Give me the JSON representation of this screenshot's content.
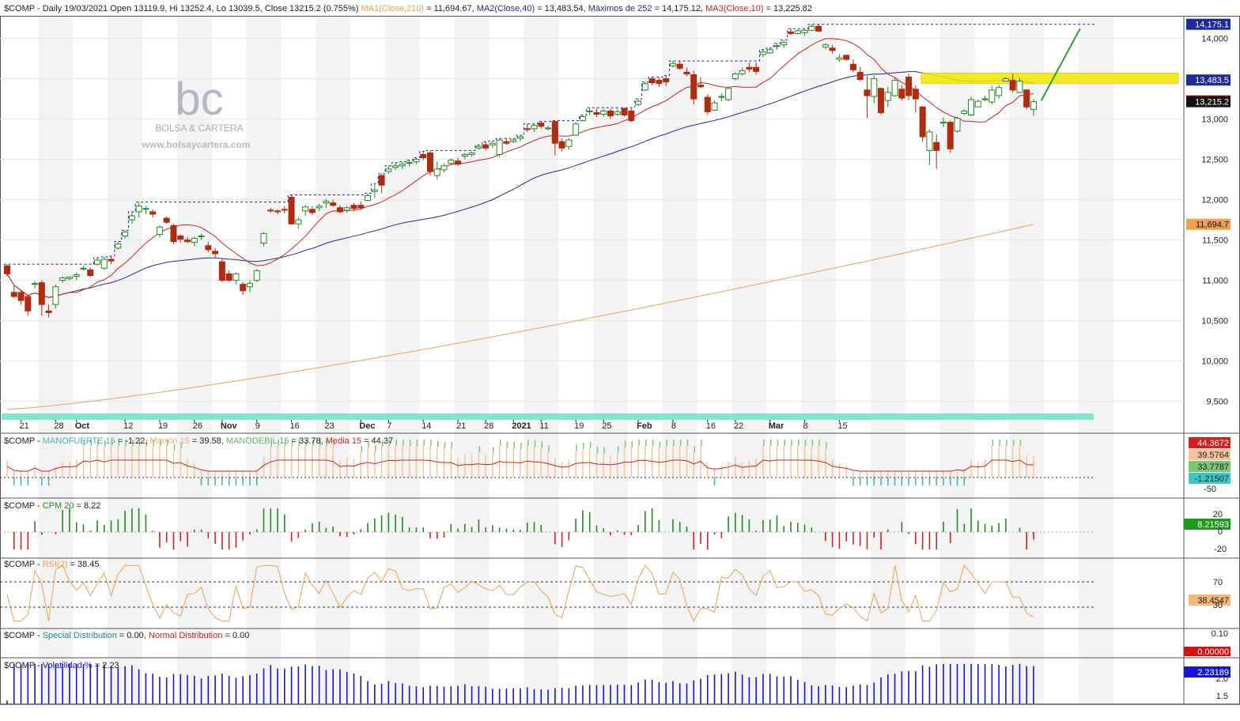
{
  "symbol": "$COMP",
  "header": {
    "prefix": "$COMP - Daily 19/03/2021 Open 13119.9, Hi 13252.4, Lo 13039.5, Close 13215.2 (0.755%)",
    "ma1_label": "MA1(Close,210)",
    "ma1_value": " = 11,694.67,",
    "ma2_label": "MA2(Close,40)",
    "ma2_value": " = 13,483.54,",
    "max_label": "Máximos de 252",
    "max_value": " = 14,175.12,",
    "ma3_label": "MA3(Close,10)",
    "ma3_value": " = 13,225.82"
  },
  "watermark": {
    "logo": "bc",
    "name": "BOLSA & CARTERA",
    "url": "www.bolsaycartera.com"
  },
  "colors": {
    "up": "#1e8c1e",
    "down": "#b22b0e",
    "ma210": "#f0a050",
    "ma40": "#1c2a9e",
    "ma10": "#d62020",
    "max252": "#1c2a9e",
    "yellow_zone": "#f5e600",
    "trend_arrow": "#2aa030",
    "time_bar": "#7fe6d0",
    "rsi": "#f0a050",
    "vol": "#1515d8",
    "cpm_up": "#1e8c1e",
    "cpm_down": "#d62020"
  },
  "x_axis": {
    "labels": [
      {
        "i": 2,
        "text": "21"
      },
      {
        "i": 7,
        "text": "28"
      },
      {
        "i": 10,
        "text": "Oct",
        "bold": true
      },
      {
        "i": 17,
        "text": "12"
      },
      {
        "i": 22,
        "text": "19"
      },
      {
        "i": 27,
        "text": "26"
      },
      {
        "i": 31,
        "text": "Nov",
        "bold": true
      },
      {
        "i": 36,
        "text": "9"
      },
      {
        "i": 41,
        "text": "16"
      },
      {
        "i": 46,
        "text": "23"
      },
      {
        "i": 51,
        "text": "Dec",
        "bold": true
      },
      {
        "i": 55,
        "text": "7"
      },
      {
        "i": 60,
        "text": "14"
      },
      {
        "i": 65,
        "text": "21"
      },
      {
        "i": 69,
        "text": "28"
      },
      {
        "i": 73,
        "text": "2021",
        "bold": true
      },
      {
        "i": 77,
        "text": "11"
      },
      {
        "i": 82,
        "text": "19"
      },
      {
        "i": 86,
        "text": "25"
      },
      {
        "i": 91,
        "text": "Feb",
        "bold": true
      },
      {
        "i": 96,
        "text": "8"
      },
      {
        "i": 101,
        "text": "16"
      },
      {
        "i": 105,
        "text": "22"
      },
      {
        "i": 110,
        "text": "Mar",
        "bold": true
      },
      {
        "i": 115,
        "text": "8"
      },
      {
        "i": 120,
        "text": "15"
      }
    ]
  },
  "price_axis": {
    "ticks": [
      "14,000",
      "13,500",
      "13,000",
      "12,500",
      "12,000",
      "11,500",
      "11,000",
      "10,500",
      "10,000",
      "9,500"
    ],
    "tick_values": [
      14000,
      13500,
      13000,
      12500,
      12000,
      11500,
      11000,
      10500,
      10000,
      9500
    ],
    "range": [
      9300,
      14280
    ]
  },
  "price_tags": [
    {
      "text": "14,175.1",
      "value": 14175.1,
      "bg": "#1c2a9e",
      "fg": "#ffffff"
    },
    {
      "text": "13,483.5",
      "value": 13483.5,
      "bg": "#1c2a9e",
      "fg": "#ffffff"
    },
    {
      "text": "13,225.8",
      "value": 13225.8,
      "bg": "#d62020",
      "fg": "#ffffff"
    },
    {
      "text": "13,215.2",
      "value": 13215.2,
      "bg": "#111111",
      "fg": "#ffffff"
    },
    {
      "text": "11,694.7",
      "value": 11694.7,
      "bg": "#f0a050",
      "fg": "#111111"
    }
  ],
  "panel_mano": {
    "title_prefix": "$COMP - ",
    "l1": "MANOFUERTE 15",
    "v1": " = -1.22, ",
    "l2": "Marrón 15",
    "v2": " = 39.58, ",
    "l3": "MANODEBIL 15",
    "v3": " = 33.78, ",
    "l4": "Media 15",
    "v4": " = 44.37",
    "tag1": "44.3672",
    "tag2": "39.5764",
    "tag3": "33.7787",
    "tag4": "-1.21507",
    "tick": "-50"
  },
  "panel_cpm": {
    "title_prefix": "$COMP - ",
    "label": "CPM 20",
    "value": " = 8.22",
    "ticks": [
      "20",
      "0",
      "-20"
    ],
    "tag": "8.21593"
  },
  "panel_rsi": {
    "title_prefix": "$COMP - ",
    "label": "RSI(2)",
    "value": " = 38.45",
    "ticks": [
      "70",
      "30"
    ],
    "tag": "38.4547"
  },
  "panel_dist": {
    "title_prefix": "$COMP - ",
    "l1": "Special Distribution",
    "v1": " = 0.00, ",
    "l2": "Normal Distribution",
    "v2": " = 0.00",
    "ticks": [
      "0.10"
    ],
    "tag": "0.00000"
  },
  "panel_vol": {
    "title_prefix": "$COMP - ",
    "label": "Volatilidad %",
    "value": " = 2.23",
    "ticks": [
      "2.0",
      "1.5"
    ],
    "tag": "2.23189"
  },
  "chart_data": {
    "type": "candlestick",
    "title": "$COMP - Daily 19/03/2021",
    "last_close": 13215.2,
    "candles": [
      [
        11180,
        11200,
        11050,
        11080
      ],
      [
        10850,
        10930,
        10780,
        10800
      ],
      [
        10850,
        10880,
        10700,
        10750
      ],
      [
        10800,
        10820,
        10560,
        10620
      ],
      [
        10950,
        10990,
        10900,
        10960
      ],
      [
        10970,
        11000,
        10560,
        10700
      ],
      [
        10620,
        10700,
        10540,
        10600
      ],
      [
        10700,
        10950,
        10650,
        10920
      ],
      [
        11000,
        11050,
        10970,
        11030
      ],
      [
        11020,
        11050,
        11000,
        11040
      ],
      [
        11050,
        11100,
        11000,
        11070
      ],
      [
        11150,
        11180,
        11120,
        11150
      ],
      [
        11130,
        11160,
        11040,
        11060
      ],
      [
        11200,
        11280,
        11180,
        11250
      ],
      [
        11150,
        11290,
        11130,
        11260
      ],
      [
        11260,
        11300,
        11200,
        11240
      ],
      [
        11400,
        11480,
        11380,
        11450
      ],
      [
        11550,
        11620,
        11520,
        11600
      ],
      [
        11750,
        11850,
        11700,
        11800
      ],
      [
        11850,
        11970,
        11780,
        11920
      ],
      [
        11880,
        11920,
        11820,
        11890
      ],
      [
        11850,
        11880,
        11780,
        11820
      ],
      [
        11570,
        11680,
        11530,
        11660
      ],
      [
        11770,
        11790,
        11700,
        11720
      ],
      [
        11680,
        11700,
        11450,
        11480
      ],
      [
        11550,
        11570,
        11470,
        11510
      ],
      [
        11500,
        11540,
        11460,
        11480
      ],
      [
        11470,
        11540,
        11420,
        11520
      ],
      [
        11540,
        11580,
        11500,
        11550
      ],
      [
        11430,
        11480,
        11350,
        11380
      ],
      [
        11360,
        11400,
        11280,
        11330
      ],
      [
        11230,
        11270,
        10980,
        11000
      ],
      [
        11080,
        11120,
        10980,
        11000
      ],
      [
        11000,
        11100,
        10950,
        11080
      ],
      [
        10950,
        10980,
        10820,
        10870
      ],
      [
        10920,
        11000,
        10850,
        10960
      ],
      [
        11000,
        11140,
        10980,
        11120
      ],
      [
        11460,
        11600,
        11420,
        11580
      ],
      [
        11870,
        11900,
        11840,
        11860
      ],
      [
        11860,
        11880,
        11820,
        11850
      ],
      [
        11880,
        11920,
        11830,
        11870
      ],
      [
        12030,
        12060,
        11690,
        11700
      ],
      [
        11700,
        11780,
        11640,
        11750
      ],
      [
        11860,
        11940,
        11800,
        11910
      ],
      [
        11880,
        11920,
        11810,
        11840
      ],
      [
        11900,
        11950,
        11860,
        11920
      ],
      [
        11960,
        12010,
        11900,
        11980
      ],
      [
        11960,
        12000,
        11910,
        11930
      ],
      [
        11900,
        11930,
        11830,
        11850
      ],
      [
        11870,
        11920,
        11840,
        11900
      ],
      [
        11930,
        11960,
        11860,
        11890
      ],
      [
        11930,
        11980,
        11870,
        11900
      ],
      [
        11990,
        12080,
        11980,
        12050
      ],
      [
        12100,
        12200,
        12020,
        12120
      ],
      [
        12300,
        12320,
        12080,
        12180
      ],
      [
        12350,
        12420,
        12320,
        12380
      ],
      [
        12400,
        12460,
        12370,
        12420
      ],
      [
        12420,
        12470,
        12380,
        12440
      ],
      [
        12450,
        12490,
        12410,
        12460
      ],
      [
        12470,
        12520,
        12440,
        12500
      ],
      [
        12560,
        12600,
        12490,
        12520
      ],
      [
        12580,
        12610,
        12300,
        12350
      ],
      [
        12300,
        12470,
        12250,
        12380
      ],
      [
        12370,
        12450,
        12340,
        12420
      ],
      [
        12450,
        12510,
        12440,
        12490
      ],
      [
        12480,
        12520,
        12420,
        12440
      ],
      [
        12540,
        12580,
        12500,
        12560
      ],
      [
        12560,
        12600,
        12530,
        12580
      ],
      [
        12640,
        12680,
        12620,
        12660
      ],
      [
        12680,
        12720,
        12610,
        12640
      ],
      [
        12680,
        12730,
        12640,
        12700
      ],
      [
        12560,
        12760,
        12530,
        12740
      ],
      [
        12720,
        12760,
        12680,
        12700
      ],
      [
        12720,
        12760,
        12700,
        12740
      ],
      [
        12760,
        12800,
        12720,
        12780
      ],
      [
        12880,
        12940,
        12840,
        12870
      ],
      [
        12880,
        12940,
        12840,
        12920
      ],
      [
        12950,
        12970,
        12880,
        12910
      ],
      [
        12880,
        12920,
        12860,
        12890
      ],
      [
        12970,
        12980,
        12550,
        12700
      ],
      [
        12720,
        12760,
        12600,
        12640
      ],
      [
        12660,
        12760,
        12620,
        12740
      ],
      [
        12800,
        12960,
        12790,
        12940
      ],
      [
        12980,
        13050,
        12970,
        13030
      ],
      [
        13100,
        13140,
        13050,
        13100
      ],
      [
        13080,
        13130,
        13020,
        13060
      ],
      [
        13060,
        13120,
        13030,
        13100
      ],
      [
        13100,
        13130,
        13000,
        13040
      ],
      [
        13060,
        13120,
        13040,
        13090
      ],
      [
        13130,
        13140,
        13030,
        13050
      ],
      [
        13100,
        13130,
        12960,
        12980
      ],
      [
        13180,
        13250,
        13160,
        13220
      ],
      [
        13360,
        13460,
        13350,
        13440
      ],
      [
        13500,
        13520,
        13420,
        13450
      ],
      [
        13480,
        13520,
        13400,
        13440
      ],
      [
        13500,
        13540,
        13410,
        13460
      ],
      [
        13660,
        13720,
        13640,
        13690
      ],
      [
        13680,
        13720,
        13610,
        13630
      ],
      [
        13580,
        13640,
        13530,
        13560
      ],
      [
        13550,
        13600,
        13180,
        13250
      ],
      [
        13420,
        13520,
        13380,
        13400
      ],
      [
        13270,
        13310,
        13050,
        13090
      ],
      [
        13110,
        13230,
        13100,
        13200
      ],
      [
        13270,
        13320,
        13220,
        13280
      ],
      [
        13240,
        13400,
        13220,
        13380
      ],
      [
        13500,
        13580,
        13480,
        13560
      ],
      [
        13560,
        13640,
        13540,
        13600
      ],
      [
        13640,
        13700,
        13580,
        13620
      ],
      [
        13640,
        13700,
        13550,
        13590
      ],
      [
        13800,
        13860,
        13770,
        13830
      ],
      [
        13820,
        13880,
        13810,
        13860
      ],
      [
        13900,
        13940,
        13860,
        13910
      ],
      [
        13920,
        13980,
        13880,
        13950
      ],
      [
        14080,
        14120,
        14040,
        14060
      ],
      [
        14060,
        14110,
        14050,
        14095
      ],
      [
        14070,
        14120,
        14030,
        14100
      ],
      [
        14100,
        14175,
        14090,
        14150
      ],
      [
        14150,
        14175,
        14080,
        14090
      ],
      [
        13890,
        13940,
        13870,
        13920
      ],
      [
        13880,
        13920,
        13810,
        13850
      ],
      [
        13740,
        13800,
        13710,
        13760
      ],
      [
        13790,
        13800,
        13720,
        13740
      ],
      [
        13680,
        13740,
        13580,
        13610
      ],
      [
        13580,
        13650,
        13470,
        13490
      ],
      [
        13360,
        13530,
        13010,
        13290
      ],
      [
        13280,
        13540,
        13200,
        13500
      ],
      [
        13380,
        13390,
        13050,
        13080
      ],
      [
        13230,
        13400,
        13150,
        13330
      ],
      [
        13290,
        13520,
        13280,
        13480
      ],
      [
        13370,
        13420,
        13230,
        13260
      ],
      [
        13520,
        13560,
        13230,
        13290
      ],
      [
        13370,
        13420,
        13080,
        13250
      ],
      [
        13150,
        13160,
        12720,
        12780
      ],
      [
        12610,
        12870,
        12430,
        12840
      ],
      [
        12710,
        12810,
        12380,
        12610
      ],
      [
        12950,
        13020,
        12900,
        12960
      ],
      [
        12960,
        12980,
        12580,
        12630
      ],
      [
        12850,
        13030,
        12830,
        13010
      ],
      [
        13070,
        13120,
        13050,
        13100
      ],
      [
        13050,
        13280,
        13040,
        13240
      ],
      [
        13150,
        13240,
        13150,
        13220
      ],
      [
        13250,
        13290,
        13220,
        13250
      ],
      [
        13210,
        13410,
        13180,
        13360
      ],
      [
        13290,
        13420,
        13250,
        13390
      ],
      [
        13470,
        13520,
        13470,
        13500
      ],
      [
        13480,
        13560,
        13330,
        13360
      ],
      [
        13330,
        13510,
        13320,
        13470
      ],
      [
        13360,
        13370,
        13120,
        13150
      ],
      [
        13120,
        13250,
        13040,
        13215
      ]
    ],
    "ma210": {
      "start": 9400,
      "end": 11694.7
    },
    "ma40_last": 13483.5,
    "ma10_last": 13225.8,
    "max252_last": 14175.1
  }
}
